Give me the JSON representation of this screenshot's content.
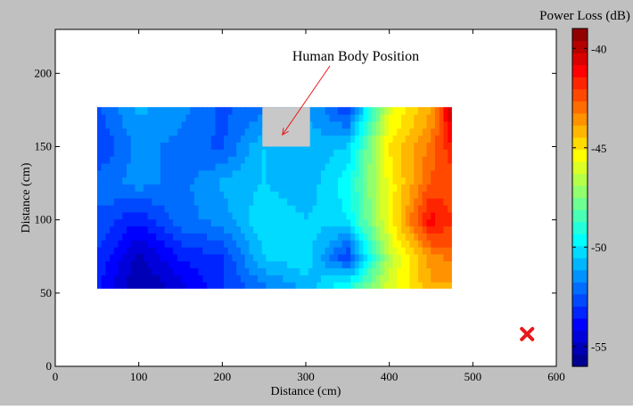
{
  "figure": {
    "background": "#c0c0c0"
  },
  "chart_data": {
    "type": "heatmap",
    "xlabel": "Distance (cm)",
    "ylabel": "Distance (cm)",
    "xlim": [
      0,
      600
    ],
    "ylim": [
      0,
      230
    ],
    "x_ticks": [
      0,
      100,
      200,
      300,
      400,
      500,
      600
    ],
    "y_ticks": [
      0,
      50,
      100,
      150,
      200
    ],
    "grid": false,
    "data_extent": {
      "x": [
        50,
        475
      ],
      "y": [
        53,
        177
      ]
    },
    "grid_x": [
      50,
      100,
      150,
      200,
      250,
      300,
      350,
      400,
      450,
      475
    ],
    "grid_y": [
      53,
      75,
      100,
      125,
      150,
      177
    ],
    "values_db": [
      [
        -53.5,
        -55.5,
        -54.5,
        -53.0,
        -52.0,
        -51.0,
        -49.0,
        -46.0,
        -44.0,
        -44.0
      ],
      [
        -53.0,
        -55.0,
        -53.5,
        -53.0,
        -50.5,
        -50.0,
        -53.0,
        -46.5,
        -43.5,
        -43.0
      ],
      [
        -52.5,
        -53.5,
        -52.0,
        -51.5,
        -50.0,
        -50.5,
        -50.0,
        -45.5,
        -41.0,
        -42.0
      ],
      [
        -52.0,
        -51.5,
        -52.0,
        -51.0,
        -50.5,
        -51.0,
        -49.5,
        -45.5,
        -42.5,
        -42.5
      ],
      [
        -53.0,
        -51.5,
        -52.0,
        -52.5,
        -50.5,
        -51.0,
        -50.5,
        -45.0,
        -43.0,
        -41.5
      ],
      [
        -52.5,
        -51.0,
        -51.5,
        -52.5,
        -52.0,
        -51.0,
        -53.0,
        -46.0,
        -44.0,
        -40.0
      ]
    ],
    "annotations": [
      {
        "text": "Human Body Position",
        "color": "#e8191c",
        "rect_x": [
          248,
          305
        ],
        "rect_y": [
          150,
          177
        ],
        "rect_color": "#c8c8c8",
        "arrow_to": [
          272,
          158
        ]
      }
    ],
    "marker": {
      "symbol": "x",
      "x": 565,
      "y": 22,
      "color": "#e8191c"
    },
    "colorbar": {
      "title": "Power Loss (dB)",
      "range": [
        -56,
        -39
      ],
      "ticks": [
        -40,
        -45,
        -50,
        -55
      ],
      "levels": 28
    }
  }
}
